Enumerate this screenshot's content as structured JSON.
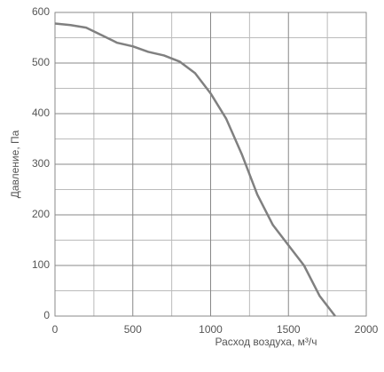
{
  "chart_data": {
    "type": "line",
    "x_label": "Расход воздуха, м³/ч",
    "y_label": "Давление, Па",
    "x": [
      0,
      100,
      200,
      300,
      400,
      500,
      600,
      700,
      800,
      900,
      1000,
      1100,
      1200,
      1300,
      1400,
      1500,
      1600,
      1700,
      1800
    ],
    "series": [
      {
        "color": "#808080",
        "values": [
          578,
          575,
          570,
          555,
          540,
          533,
          522,
          515,
          503,
          480,
          440,
          390,
          320,
          240,
          180,
          140,
          100,
          40,
          0
        ]
      }
    ],
    "xlim": [
      0,
      2000
    ],
    "ylim": [
      0,
      600
    ],
    "xticks": [
      0,
      500,
      1000,
      1500,
      2000
    ],
    "yticks": [
      0,
      100,
      200,
      300,
      400,
      500,
      600
    ],
    "grid": true
  }
}
